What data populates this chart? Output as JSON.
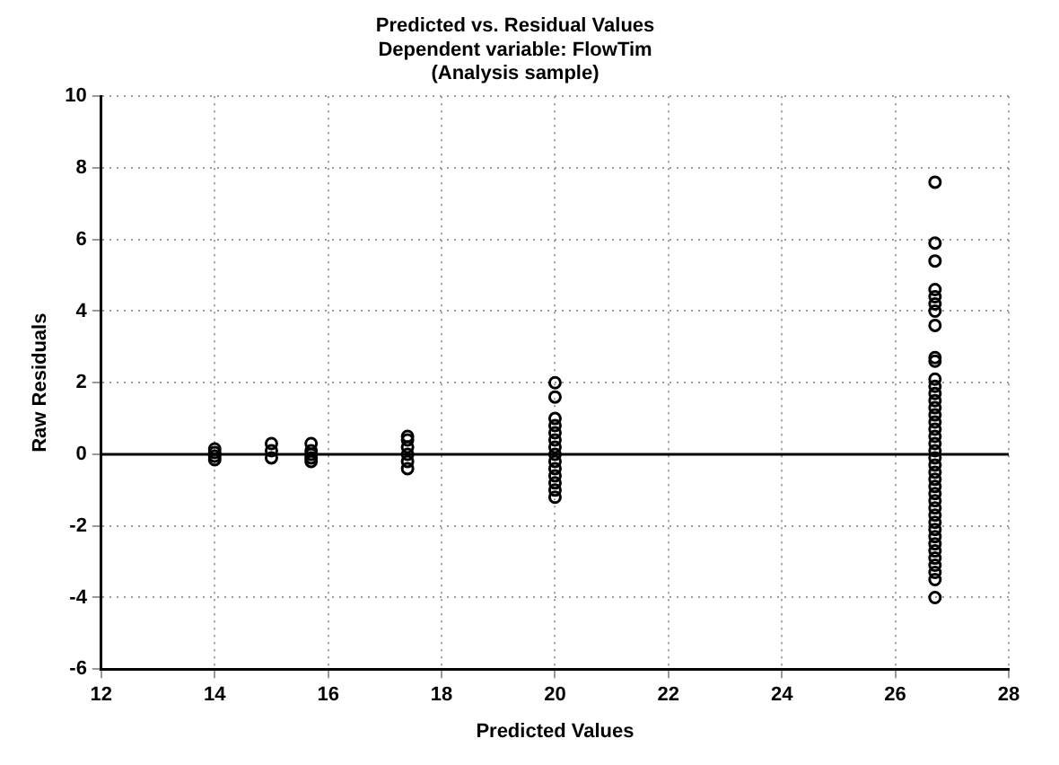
{
  "chart_data": {
    "type": "scatter",
    "title": "Predicted vs. Residual Values",
    "subtitle": "Dependent variable: FlowTim\n(Analysis sample)",
    "xlabel": "Predicted Values",
    "ylabel": "Raw Residuals",
    "x": [
      14,
      14,
      14,
      14,
      15,
      15,
      15,
      15.7,
      15.7,
      15.7,
      15.7,
      15.7,
      17.4,
      17.4,
      17.4,
      17.4,
      17.4,
      17.4,
      20,
      20,
      20,
      20,
      20,
      20,
      20,
      20,
      20,
      20,
      20,
      20,
      20,
      20,
      26.7,
      26.7,
      26.7,
      26.7,
      26.7,
      26.7,
      26.7,
      26.7,
      26.7,
      26.7,
      26.7,
      26.7,
      26.7,
      26.7,
      26.7,
      26.7,
      26.7,
      26.7,
      26.7,
      26.7,
      26.7,
      26.7,
      26.7,
      26.7,
      26.7,
      26.7,
      26.7,
      26.7,
      26.7,
      26.7,
      26.7,
      26.7,
      26.7,
      26.7,
      26.7,
      26.7,
      26.7,
      26.7,
      26.7,
      26.7
    ],
    "series": [
      {
        "color": "#000000",
        "values": [
          0.15,
          0.05,
          -0.05,
          -0.15,
          0.3,
          0.1,
          -0.1,
          0.3,
          0.1,
          0,
          -0.1,
          -0.2,
          0.5,
          0.4,
          0.2,
          0,
          -0.2,
          -0.4,
          2,
          1.6,
          1,
          0.8,
          0.6,
          0.4,
          0.2,
          0,
          -0.2,
          -0.4,
          -0.6,
          -0.8,
          -1,
          -1.2,
          7.6,
          5.9,
          5.4,
          4.6,
          4.4,
          4.2,
          4,
          3.6,
          2.7,
          2.6,
          2.1,
          1.9,
          1.7,
          1.5,
          1.3,
          1.1,
          0.9,
          0.7,
          0.5,
          0.3,
          0.1,
          -0.1,
          -0.3,
          -0.5,
          -0.7,
          -0.9,
          -1.1,
          -1.3,
          -1.5,
          -1.7,
          -1.9,
          -2.1,
          -2.3,
          -2.5,
          -2.7,
          -2.9,
          -3.1,
          -3.3,
          -3.5,
          -4
        ]
      }
    ],
    "xlim": [
      12,
      28
    ],
    "xticks": [
      12,
      14,
      16,
      18,
      20,
      22,
      24,
      26,
      28
    ],
    "ylim": [
      -6,
      10
    ],
    "yticks": [
      -6,
      -4,
      -2,
      0,
      2,
      4,
      6,
      8,
      10
    ],
    "grid": true,
    "marker": "circle",
    "legend": false,
    "ref_lines": [
      {
        "axis": "y",
        "value": 0,
        "color": "#000000",
        "line_style": "solid"
      }
    ]
  }
}
